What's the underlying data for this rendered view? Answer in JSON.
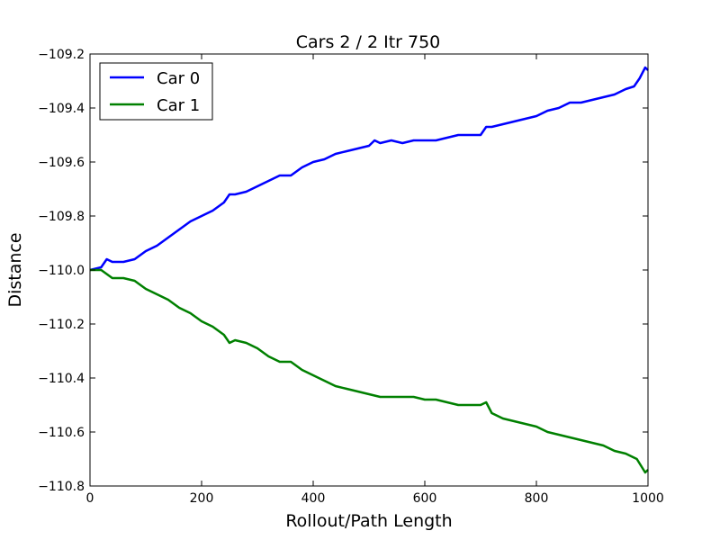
{
  "chart_data": {
    "type": "line",
    "title": "Cars 2 / 2 Itr 750",
    "xlabel": "Rollout/Path Length",
    "ylabel": "Distance",
    "xlim": [
      0,
      1000
    ],
    "ylim": [
      -110.8,
      -109.2
    ],
    "x_ticks": [
      0,
      200,
      400,
      600,
      800,
      1000
    ],
    "x_tick_labels": [
      "0",
      "200",
      "400",
      "600",
      "800",
      "1000"
    ],
    "y_ticks": [
      -109.2,
      -109.4,
      -109.6,
      -109.8,
      -110.0,
      -110.2,
      -110.4,
      -110.6,
      -110.8
    ],
    "y_tick_labels": [
      "−109.2",
      "−109.4",
      "−109.6",
      "−109.8",
      "−110.0",
      "−110.2",
      "−110.4",
      "−110.6",
      "−110.8"
    ],
    "grid": false,
    "legend": "top-left",
    "series": [
      {
        "name": "Car 0",
        "color": "#0000ff",
        "x": [
          0,
          20,
          30,
          40,
          60,
          80,
          100,
          120,
          140,
          160,
          180,
          200,
          220,
          240,
          250,
          260,
          280,
          300,
          320,
          340,
          360,
          380,
          400,
          420,
          440,
          460,
          480,
          500,
          510,
          520,
          540,
          560,
          580,
          600,
          620,
          640,
          660,
          680,
          700,
          710,
          720,
          740,
          760,
          780,
          800,
          820,
          840,
          860,
          880,
          900,
          920,
          940,
          960,
          975,
          985,
          995,
          1000
        ],
        "values": [
          -110.0,
          -109.99,
          -109.96,
          -109.97,
          -109.97,
          -109.96,
          -109.93,
          -109.91,
          -109.88,
          -109.85,
          -109.82,
          -109.8,
          -109.78,
          -109.75,
          -109.72,
          -109.72,
          -109.71,
          -109.69,
          -109.67,
          -109.65,
          -109.65,
          -109.62,
          -109.6,
          -109.59,
          -109.57,
          -109.56,
          -109.55,
          -109.54,
          -109.52,
          -109.53,
          -109.52,
          -109.53,
          -109.52,
          -109.52,
          -109.52,
          -109.51,
          -109.5,
          -109.5,
          -109.5,
          -109.47,
          -109.47,
          -109.46,
          -109.45,
          -109.44,
          -109.43,
          -109.41,
          -109.4,
          -109.38,
          -109.38,
          -109.37,
          -109.36,
          -109.35,
          -109.33,
          -109.32,
          -109.29,
          -109.25,
          -109.26
        ]
      },
      {
        "name": "Car 1",
        "color": "#008000",
        "x": [
          0,
          20,
          40,
          60,
          80,
          100,
          120,
          140,
          160,
          180,
          200,
          220,
          240,
          250,
          260,
          280,
          300,
          320,
          340,
          360,
          380,
          400,
          420,
          440,
          460,
          480,
          500,
          520,
          540,
          560,
          580,
          600,
          620,
          640,
          660,
          680,
          700,
          710,
          720,
          740,
          760,
          780,
          800,
          820,
          840,
          860,
          880,
          900,
          920,
          940,
          960,
          980,
          995,
          1000
        ],
        "values": [
          -110.0,
          -110.0,
          -110.03,
          -110.03,
          -110.04,
          -110.07,
          -110.09,
          -110.11,
          -110.14,
          -110.16,
          -110.19,
          -110.21,
          -110.24,
          -110.27,
          -110.26,
          -110.27,
          -110.29,
          -110.32,
          -110.34,
          -110.34,
          -110.37,
          -110.39,
          -110.41,
          -110.43,
          -110.44,
          -110.45,
          -110.46,
          -110.47,
          -110.47,
          -110.47,
          -110.47,
          -110.48,
          -110.48,
          -110.49,
          -110.5,
          -110.5,
          -110.5,
          -110.49,
          -110.53,
          -110.55,
          -110.56,
          -110.57,
          -110.58,
          -110.6,
          -110.61,
          -110.62,
          -110.63,
          -110.64,
          -110.65,
          -110.67,
          -110.68,
          -110.7,
          -110.75,
          -110.74
        ]
      }
    ]
  }
}
